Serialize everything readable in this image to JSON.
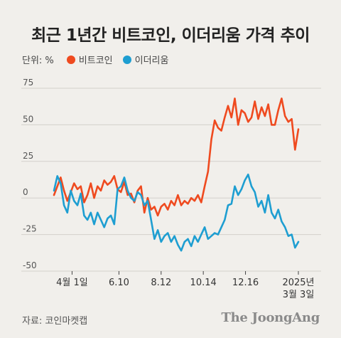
{
  "title": "최근 1년간 비트코인, 이더리움 가격 추이",
  "legend": {
    "unit": "단위: %",
    "items": [
      {
        "label": "비트코인",
        "color": "#ef4a1f"
      },
      {
        "label": "이더리움",
        "color": "#1e9ed1"
      }
    ]
  },
  "source": "자료: 코인마켓캡",
  "brand": "The JoongAng",
  "chart_data": {
    "type": "line",
    "ylabel": "",
    "xlabel": "",
    "ylim": [
      -50,
      75
    ],
    "yticks": [
      75,
      50,
      25,
      0,
      -25,
      -50
    ],
    "xlim": [
      0,
      365
    ],
    "grid": "horizontal",
    "xticks": [
      {
        "x": 27,
        "label": "4월 1일"
      },
      {
        "x": 97,
        "label": "6.10"
      },
      {
        "x": 160,
        "label": "8.12"
      },
      {
        "x": 223,
        "label": "10.14"
      },
      {
        "x": 286,
        "label": "12.16"
      },
      {
        "x": 365,
        "label": "2025년\n3월 3일"
      }
    ],
    "series": [
      {
        "name": "비트코인",
        "color": "#ef4a1f",
        "x": [
          0,
          5,
          10,
          15,
          20,
          25,
          30,
          35,
          40,
          45,
          50,
          55,
          60,
          65,
          70,
          75,
          80,
          85,
          90,
          95,
          100,
          105,
          110,
          115,
          120,
          125,
          130,
          135,
          140,
          145,
          150,
          155,
          160,
          165,
          170,
          175,
          180,
          185,
          190,
          195,
          200,
          205,
          210,
          215,
          220,
          225,
          230,
          235,
          240,
          245,
          250,
          255,
          260,
          265,
          270,
          275,
          280,
          285,
          290,
          295,
          300,
          305,
          310,
          315,
          320,
          325,
          330,
          335,
          340,
          345,
          350,
          355,
          360,
          365
        ],
        "values": [
          2,
          8,
          14,
          5,
          -2,
          4,
          10,
          6,
          8,
          -3,
          2,
          10,
          0,
          8,
          5,
          12,
          9,
          11,
          15,
          6,
          4,
          11,
          2,
          3,
          -3,
          5,
          8,
          -10,
          0,
          -8,
          -6,
          -12,
          -6,
          -4,
          -8,
          -2,
          -5,
          2,
          -5,
          -2,
          -4,
          0,
          -2,
          2,
          -3,
          8,
          18,
          40,
          53,
          48,
          46,
          55,
          63,
          55,
          68,
          50,
          60,
          58,
          52,
          55,
          66,
          54,
          62,
          56,
          64,
          50,
          50,
          60,
          68,
          56,
          52,
          54,
          33,
          47
        ]
      },
      {
        "name": "이더리움",
        "color": "#1e9ed1",
        "x": [
          0,
          5,
          10,
          15,
          20,
          25,
          30,
          35,
          40,
          45,
          50,
          55,
          60,
          65,
          70,
          75,
          80,
          85,
          90,
          95,
          100,
          105,
          110,
          115,
          120,
          125,
          130,
          135,
          140,
          145,
          150,
          155,
          160,
          165,
          170,
          175,
          180,
          185,
          190,
          195,
          200,
          205,
          210,
          215,
          220,
          225,
          230,
          235,
          240,
          245,
          250,
          255,
          260,
          265,
          270,
          275,
          280,
          285,
          290,
          295,
          300,
          305,
          310,
          315,
          320,
          325,
          330,
          335,
          340,
          345,
          350,
          355,
          360,
          365
        ],
        "values": [
          5,
          15,
          10,
          -5,
          -10,
          5,
          -2,
          -5,
          3,
          -12,
          -15,
          -10,
          -18,
          -10,
          -15,
          -20,
          -14,
          -12,
          -18,
          6,
          8,
          14,
          5,
          0,
          -2,
          4,
          2,
          -5,
          -2,
          -15,
          -28,
          -22,
          -30,
          -26,
          -24,
          -30,
          -26,
          -32,
          -36,
          -30,
          -28,
          -33,
          -26,
          -30,
          -25,
          -20,
          -28,
          -26,
          -24,
          -25,
          -20,
          -15,
          -5,
          -4,
          8,
          2,
          6,
          12,
          16,
          8,
          4,
          -6,
          -2,
          -10,
          2,
          -10,
          -14,
          -8,
          -16,
          -20,
          -26,
          -25,
          -34,
          -30
        ]
      }
    ]
  }
}
